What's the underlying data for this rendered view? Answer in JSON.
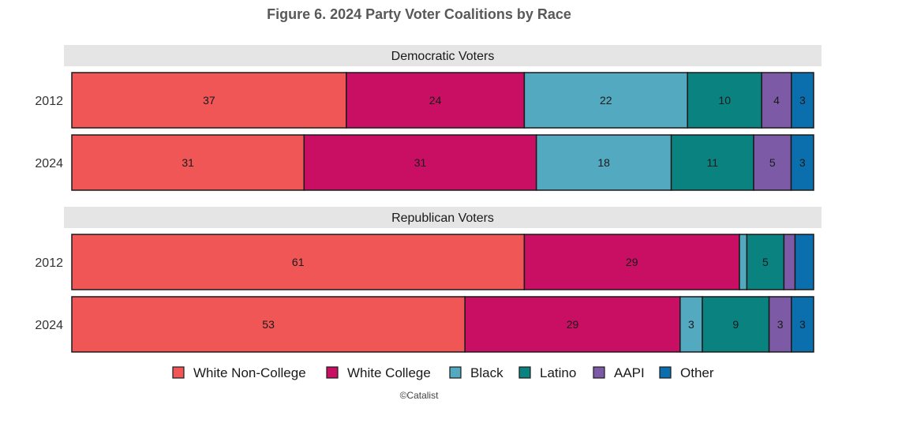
{
  "chart_data": {
    "type": "bar",
    "orientation": "horizontal",
    "stacked": true,
    "title": "Figure 6. 2024 Party Voter Coalitions by Race",
    "credit": "©Catalist",
    "legend_position": "bottom",
    "xlim": [
      0,
      100
    ],
    "series": [
      {
        "name": "White Non-College",
        "color": "#f05656"
      },
      {
        "name": "White College",
        "color": "#c90f63"
      },
      {
        "name": "Black",
        "color": "#52a9c0"
      },
      {
        "name": "Latino",
        "color": "#0a8280"
      },
      {
        "name": "AAPI",
        "color": "#7d5aa6"
      },
      {
        "name": "Other",
        "color": "#0b6fae"
      }
    ],
    "panels": [
      {
        "label": "Democratic Voters",
        "rows": [
          {
            "year": "2012",
            "values": [
              37,
              24,
              22,
              10,
              4,
              3
            ],
            "labels": [
              "37",
              "24",
              "22",
              "10",
              "4",
              "3"
            ]
          },
          {
            "year": "2024",
            "values": [
              31,
              31,
              18,
              11,
              5,
              3
            ],
            "labels": [
              "31",
              "31",
              "18",
              "11",
              "5",
              "3"
            ]
          }
        ]
      },
      {
        "label": "Republican Voters",
        "rows": [
          {
            "year": "2012",
            "values": [
              61,
              29,
              1,
              5,
              1.5,
              2.5
            ],
            "labels": [
              "61",
              "29",
              "",
              "5",
              "",
              ""
            ]
          },
          {
            "year": "2024",
            "values": [
              53,
              29,
              3,
              9,
              3,
              3
            ],
            "labels": [
              "53",
              "29",
              "3",
              "9",
              "3",
              "3"
            ]
          }
        ]
      }
    ]
  }
}
